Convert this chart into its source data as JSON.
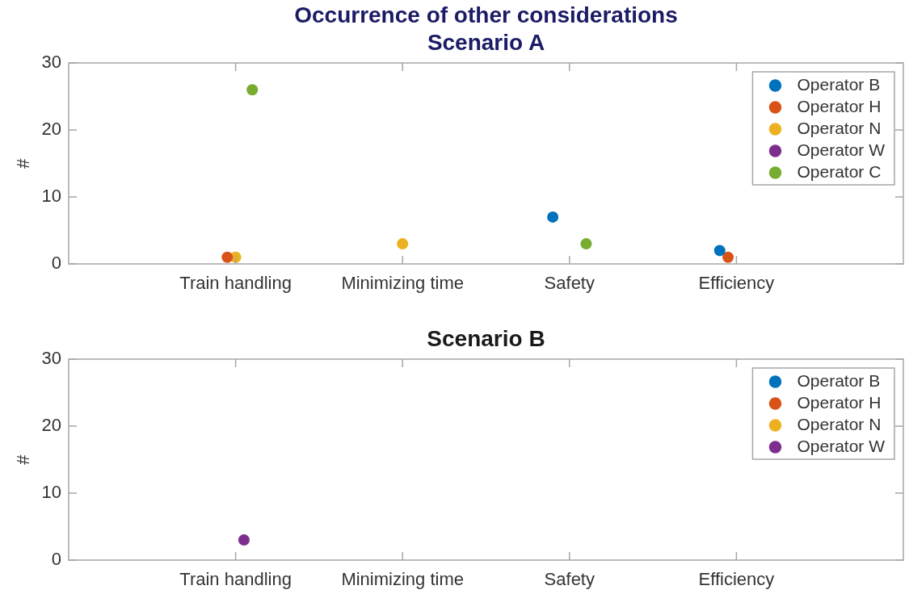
{
  "chart_data": [
    {
      "type": "scatter",
      "title": "Occurrence of other considerations",
      "subtitle": "Scenario A",
      "ylabel": "#",
      "categories": [
        "Train handling",
        "Minimizing time",
        "Safety",
        "Efficiency"
      ],
      "series": [
        {
          "name": "Operator B",
          "color": "#0072bd",
          "values": [
            null,
            null,
            7,
            2
          ]
        },
        {
          "name": "Operator H",
          "color": "#d95319",
          "values": [
            1,
            null,
            null,
            1
          ]
        },
        {
          "name": "Operator N",
          "color": "#edb120",
          "values": [
            1,
            3,
            null,
            null
          ]
        },
        {
          "name": "Operator W",
          "color": "#7e2f8e",
          "values": [
            null,
            null,
            null,
            null
          ]
        },
        {
          "name": "Operator C",
          "color": "#77ac30",
          "values": [
            26,
            null,
            3,
            null
          ]
        }
      ],
      "ylim": [
        0,
        30
      ],
      "yticks": [
        0,
        10,
        20,
        30
      ],
      "legend": "top right",
      "marker": "circle"
    },
    {
      "type": "scatter",
      "title": "Scenario B",
      "ylabel": "#",
      "categories": [
        "Train handling",
        "Minimizing time",
        "Safety",
        "Efficiency"
      ],
      "series": [
        {
          "name": "Operator B",
          "color": "#0072bd",
          "values": [
            null,
            null,
            null,
            null
          ]
        },
        {
          "name": "Operator H",
          "color": "#d95319",
          "values": [
            null,
            null,
            null,
            null
          ]
        },
        {
          "name": "Operator N",
          "color": "#edb120",
          "values": [
            null,
            null,
            null,
            null
          ]
        },
        {
          "name": "Operator W",
          "color": "#7e2f8e",
          "values": [
            3,
            null,
            null,
            null
          ]
        }
      ],
      "ylim": [
        0,
        30
      ],
      "yticks": [
        0,
        10,
        20,
        30
      ],
      "legend": "top right",
      "marker": "circle"
    }
  ]
}
